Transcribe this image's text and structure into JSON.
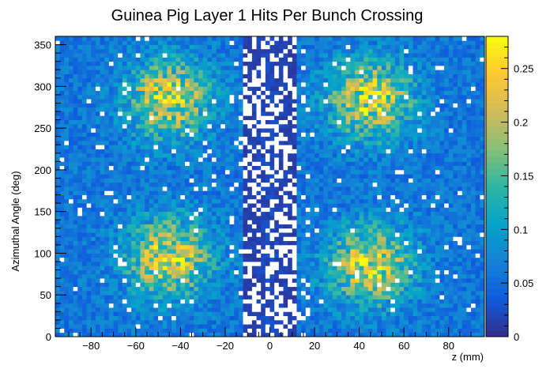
{
  "chart_data": {
    "type": "heatmap",
    "title": "Guinea Pig Layer 1 Hits Per Bunch Crossing",
    "xlabel": "z (mm)",
    "ylabel": "Azimuthal Angle (deg)",
    "xlim": [
      -96,
      96
    ],
    "ylim": [
      0,
      360
    ],
    "x_ticks": [
      -80,
      -60,
      -40,
      -20,
      0,
      20,
      40,
      60,
      80
    ],
    "y_ticks": [
      0,
      50,
      100,
      150,
      200,
      250,
      300,
      350
    ],
    "color_scale": {
      "min": 0,
      "max": 0.28,
      "ticks": [
        0,
        0.05,
        0.1,
        0.15,
        0.2,
        0.25
      ],
      "tick_labels": [
        "0",
        "0.05",
        "0.1",
        "0.15",
        "0.2",
        "0.25"
      ],
      "colors": [
        "#352a87",
        "#0f5cdd",
        "#1481d6",
        "#06a4ca",
        "#2eb7a4",
        "#87bf77",
        "#d1bb59",
        "#fec832",
        "#f9fb0e"
      ]
    },
    "bins": {
      "x_count": 96,
      "y_count": 72
    },
    "density_model": {
      "baseline": 0.06,
      "central_gap": {
        "z_min": -12,
        "z_max": 12,
        "value": 0.012
      },
      "hotspots": [
        {
          "z": -45,
          "phi": 285,
          "peak": 0.22
        },
        {
          "z": 45,
          "phi": 285,
          "peak": 0.22
        },
        {
          "z": -45,
          "phi": 95,
          "peak": 0.22
        },
        {
          "z": 45,
          "phi": 85,
          "peak": 0.22
        }
      ],
      "empty_bin_value": 0
    }
  },
  "colors": {
    "empty_bin": "#ffffff",
    "axis": "#000000"
  }
}
